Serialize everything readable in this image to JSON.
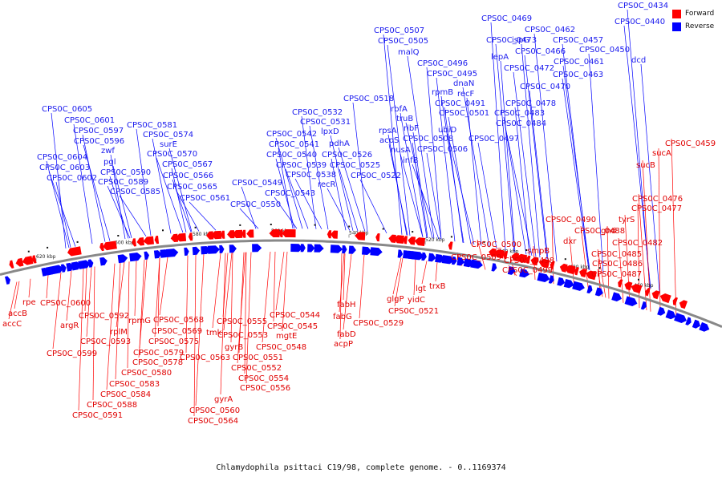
{
  "caption": "Chlamydophila psittaci C19/98, complete genome. - 0..1169374",
  "legend": {
    "forward_label": "Forward",
    "reverse_label": "Reverse",
    "forward_color": "#ff0000",
    "reverse_color": "#0000ff"
  },
  "backbone_color": "#888888",
  "scale_ticks": [
    "620 kbp",
    "600 kbp",
    "580 kbp",
    "560 kbp",
    "540 kbp",
    "520 kbp",
    "500 kbp",
    "480 kbp",
    "460 kbp"
  ],
  "forward_labels": [
    "rpe",
    "accB",
    "accC",
    "CPS0C_0600",
    "argR",
    "CPS0C_0599",
    "CPS0C_0592",
    "CPS0C_0593",
    "rplM",
    "rpmG",
    "CPS0C_0579",
    "CPS0C_0578",
    "CPS0C_0580",
    "CPS0C_0583",
    "CPS0C_0584",
    "CPS0C_0588",
    "CPS0C_0591",
    "CPS0C_0568",
    "CPS0C_0569",
    "CPS0C_0575",
    "tmk",
    "CPS0C_0563",
    "gyrA",
    "CPS0C_0560",
    "CPS0C_0564",
    "CPS0C_0555",
    "CPS0C_0553",
    "gyrB",
    "CPS0C_0551",
    "CPS0C_0552",
    "CPS0C_0554",
    "CPS0C_0556",
    "CPS0C_0544",
    "CPS0C_0545",
    "mgtE",
    "CPS0C_0548",
    "fabH",
    "fabG",
    "fabD",
    "acpP",
    "CPS0C_0529",
    "glgP",
    "yidC",
    "lgt",
    "CPS0C_0521",
    "trxB",
    "CPS0C_0509",
    "CPS0C_0500",
    "smpB",
    "CPS0C_0498",
    "CPS0C_0499",
    "CPS0C_0490",
    "dxr",
    "CPS0C_0488",
    "gnd",
    "tyrS",
    "CPS0C_0476",
    "CPS0C_0477",
    "CPS0C_0482",
    "CPS0C_0485",
    "CPS0C_0486",
    "CPS0C_0487",
    "sucB",
    "sucA",
    "CPS0C_0459"
  ],
  "reverse_labels": [
    "CPS0C_0605",
    "CPS0C_0601",
    "CPS0C_0597",
    "CPS0C_0596",
    "zwf",
    "pgl",
    "CPS0C_0604",
    "CPS0C_0603",
    "CPS0C_0602",
    "CPS0C_0590",
    "CPS0C_0589",
    "CPS0C_0585",
    "CPS0C_0581",
    "CPS0C_0574",
    "surE",
    "CPS0C_0570",
    "CPS0C_0567",
    "CPS0C_0566",
    "CPS0C_0565",
    "CPS0C_0561",
    "CPS0C_0549",
    "CPS0C_0550",
    "CPS0C_0543",
    "CPS0C_0542",
    "CPS0C_0541",
    "CPS0C_0540",
    "CPS0C_0539",
    "CPS0C_0538",
    "CPS0C_0532",
    "CPS0C_0531",
    "lpxD",
    "pdhA",
    "CPS0C_0526",
    "CPS0C_0525",
    "recR",
    "CPS0C_0522",
    "CPS0C_0518",
    "rpsA",
    "rbfA",
    "truB",
    "ribF",
    "acpS",
    "nusA",
    "infB",
    "CPS0C_0508",
    "CPS0C_0507",
    "CPS0C_0505",
    "malQ",
    "CPS0C_0496",
    "CPS0C_0495",
    "rpmB",
    "dnaN",
    "recF",
    "CPS0C_0491",
    "CPS0C_0501",
    "ubiD",
    "CPS0C_0506",
    "CPS0C_0497",
    "CPS0C_0483",
    "CPS0C_0484",
    "CPS0C_0478",
    "CPS0C_0470",
    "CPS0C_0472",
    "CPS0C_0463",
    "lepA",
    "CPS0C_0473",
    "CPS0C_0466",
    "CPS0C_0461",
    "CPS0C_0469",
    "ispG",
    "CPS0C_0462",
    "CPS0C_0457",
    "CPS0C_0450",
    "dcd",
    "CPS0C_0434",
    "CPS0C_0440"
  ]
}
